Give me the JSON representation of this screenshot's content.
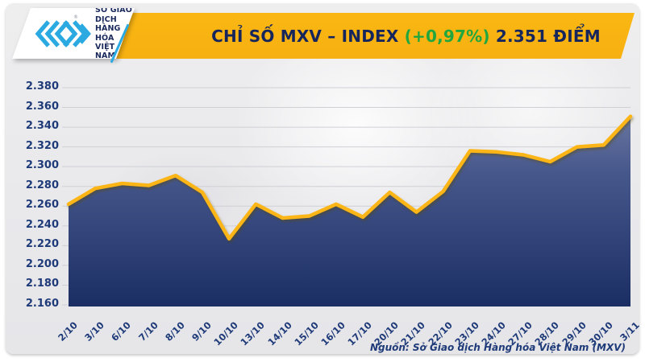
{
  "header": {
    "logo": {
      "lines": [
        "SỞ GIAO DỊCH",
        "HÀNG HÓA",
        "VIỆT NAM"
      ],
      "registered": "®"
    },
    "banner": {
      "title_prefix": "CHỈ SỐ MXV – INDEX ",
      "change": "(+0,97%)",
      "value_text": " 2.351 ĐIỂM"
    }
  },
  "chart_data": {
    "type": "area",
    "title": "CHỈ SỐ MXV – INDEX (+0,97%) 2.351 ĐIỂM",
    "change_percent": "+0,97%",
    "last_value_label": "2.351",
    "categories": [
      "2/10",
      "3/10",
      "6/10",
      "7/10",
      "8/10",
      "9/10",
      "10/10",
      "13/10",
      "14/10",
      "15/10",
      "16/10",
      "17/10",
      "20/10",
      "21/10",
      "22/10",
      "23/10",
      "24/10",
      "27/10",
      "28/10",
      "29/10",
      "30/10",
      "3/11"
    ],
    "values": [
      2262,
      2278,
      2283,
      2281,
      2291,
      2274,
      2227,
      2262,
      2248,
      2250,
      2262,
      2249,
      2274,
      2254,
      2275,
      2316,
      2315,
      2312,
      2305,
      2320,
      2322,
      2351
    ],
    "y_tick_labels": [
      "2.380",
      "2.360",
      "2.340",
      "2.320",
      "2.300",
      "2.280",
      "2.260",
      "2.240",
      "2.220",
      "2.200",
      "2.180",
      "2.160"
    ],
    "ylim": [
      2160,
      2380
    ],
    "y_step": 20,
    "grid": true,
    "legend": "none",
    "xlabel": "",
    "ylabel": ""
  },
  "footer": {
    "source": "Nguồn: Sở Giao dịch Hàng hóa Việt Nam (MXV)"
  },
  "colors": {
    "banner_yellow": "#F8B213",
    "line_yellow": "#FCB514",
    "title_navy": "#16265C",
    "change_green": "#21A73E",
    "tick_navy": "#1E3A78",
    "area_top": "#63719F",
    "area_bottom": "#1B2E63",
    "logo_blue": "#2BA9E1",
    "panel_gray": "#E9E9EC"
  }
}
